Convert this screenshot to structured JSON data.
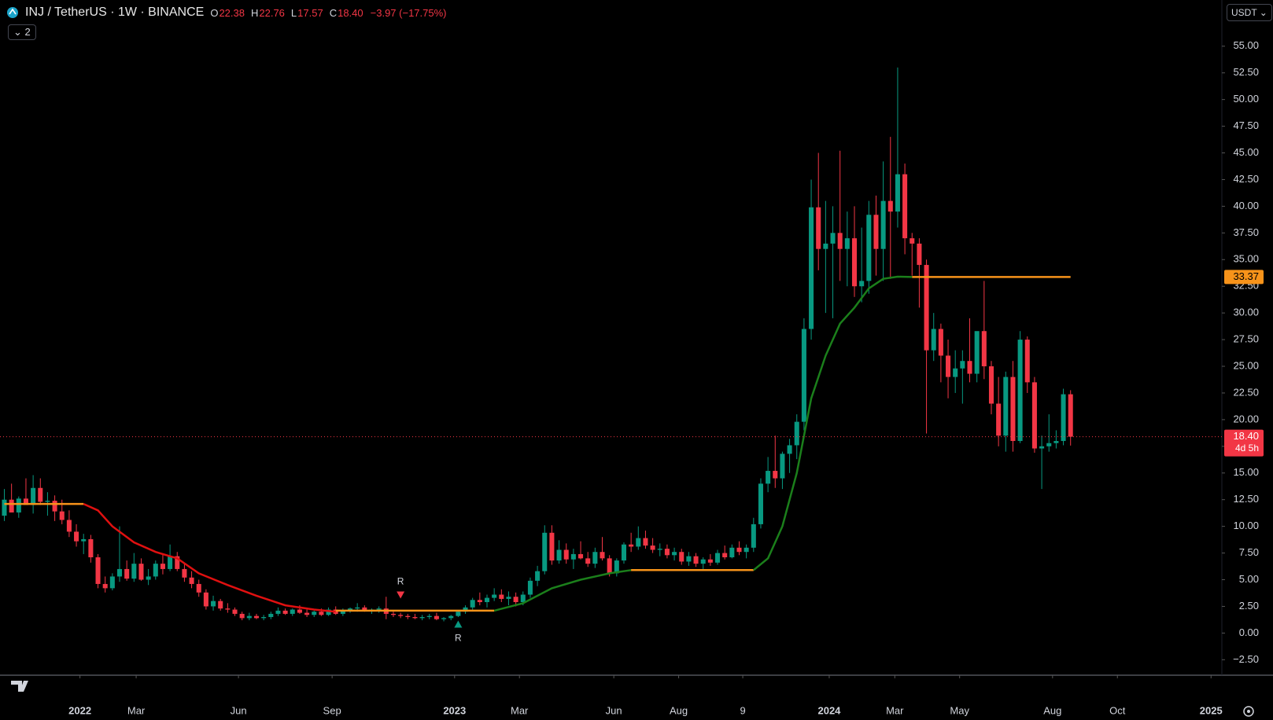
{
  "header": {
    "symbol": "INJ / TetherUS · 1W · BINANCE",
    "ohlc": [
      {
        "label": "O",
        "value": "22.38"
      },
      {
        "label": "H",
        "value": "22.76"
      },
      {
        "label": "L",
        "value": "17.57"
      },
      {
        "label": "C",
        "value": "18.40"
      }
    ],
    "change": "−3.97 (−17.75%)",
    "indicators_count": "2",
    "currency": "USDT"
  },
  "chart_data": {
    "type": "candlestick",
    "up_color": "#089981",
    "down_color": "#f23645",
    "grid": false,
    "values": [
      [
        11,
        13.5,
        10.5,
        12.5
      ],
      [
        12.5,
        14,
        11.8,
        11.3
      ],
      [
        11.3,
        12.8,
        10.8,
        12.6
      ],
      [
        12.6,
        14.5,
        12,
        12
      ],
      [
        12,
        14.8,
        11.2,
        13.6
      ],
      [
        13.6,
        14.5,
        12,
        12.3
      ],
      [
        12.3,
        13.2,
        11,
        12.4
      ],
      [
        12.4,
        12.9,
        10.5,
        11.4
      ],
      [
        11.4,
        12.5,
        10.2,
        10.6
      ],
      [
        10.6,
        11.5,
        9,
        9.5
      ],
      [
        9.5,
        10.2,
        8.1,
        8.6
      ],
      [
        8.6,
        9.3,
        7.4,
        8.8
      ],
      [
        8.8,
        9.2,
        6.6,
        7.1
      ],
      [
        7.1,
        7.4,
        4.2,
        4.6
      ],
      [
        4.6,
        5.3,
        3.8,
        4.2
      ],
      [
        4.2,
        5.6,
        4,
        5.3
      ],
      [
        5.3,
        10,
        4.8,
        6
      ],
      [
        6,
        6.8,
        4.9,
        5.1
      ],
      [
        5.1,
        7.5,
        4.8,
        6.5
      ],
      [
        6.5,
        7,
        4.9,
        5
      ],
      [
        5,
        6,
        4.5,
        5.3
      ],
      [
        5.3,
        6.8,
        5,
        6.5
      ],
      [
        6.5,
        7.4,
        5.5,
        6
      ],
      [
        6,
        8.3,
        5.8,
        7.2
      ],
      [
        7.2,
        7.6,
        5.8,
        6
      ],
      [
        6,
        6.5,
        4.8,
        5.2
      ],
      [
        5.2,
        5.8,
        4.2,
        4.6
      ],
      [
        4.6,
        5,
        3.4,
        3.8
      ],
      [
        3.8,
        4.1,
        2.2,
        2.5
      ],
      [
        2.5,
        3.5,
        2.1,
        3
      ],
      [
        3,
        3.2,
        2.1,
        2.3
      ],
      [
        2.3,
        2.8,
        1.9,
        2.2
      ],
      [
        2.2,
        2.4,
        1.6,
        1.8
      ],
      [
        1.8,
        2,
        1.2,
        1.4
      ],
      [
        1.4,
        1.9,
        1.2,
        1.6
      ],
      [
        1.6,
        1.8,
        1.3,
        1.4
      ],
      [
        1.4,
        1.7,
        1.2,
        1.5
      ],
      [
        1.5,
        2,
        1.3,
        1.8
      ],
      [
        1.8,
        2.4,
        1.6,
        2.1
      ],
      [
        2.1,
        2.3,
        1.7,
        1.8
      ],
      [
        1.8,
        2.3,
        1.6,
        2.2
      ],
      [
        2.2,
        2.6,
        1.8,
        1.9
      ],
      [
        1.9,
        2.2,
        1.5,
        1.7
      ],
      [
        1.7,
        2.1,
        1.5,
        2
      ],
      [
        2,
        2.3,
        1.6,
        1.7
      ],
      [
        1.7,
        2.4,
        1.6,
        2.2
      ],
      [
        2.2,
        2.5,
        1.7,
        1.8
      ],
      [
        1.8,
        2.3,
        1.6,
        2.1
      ],
      [
        2.1,
        2.4,
        1.9,
        2.3
      ],
      [
        2.3,
        2.8,
        2,
        2.4
      ],
      [
        2.4,
        2.6,
        2,
        2.1
      ],
      [
        2.1,
        2.3,
        1.8,
        2.2
      ],
      [
        2.2,
        2.5,
        1.9,
        2.3
      ],
      [
        2.3,
        3.4,
        1.3,
        1.8
      ],
      [
        1.8,
        2,
        1.5,
        1.7
      ],
      [
        1.7,
        1.9,
        1.4,
        1.6
      ],
      [
        1.6,
        1.8,
        1.3,
        1.5
      ],
      [
        1.5,
        1.8,
        1.3,
        1.4
      ],
      [
        1.4,
        1.7,
        1.2,
        1.5
      ],
      [
        1.5,
        1.8,
        1.3,
        1.6
      ],
      [
        1.6,
        1.9,
        1.2,
        1.3
      ],
      [
        1.3,
        1.5,
        1.1,
        1.4
      ],
      [
        1.4,
        1.7,
        1.2,
        1.6
      ],
      [
        1.6,
        2.1,
        1.5,
        2
      ],
      [
        2,
        2.6,
        1.8,
        2.4
      ],
      [
        2.4,
        3.3,
        2.2,
        3.1
      ],
      [
        3.1,
        3.8,
        2.6,
        2.9
      ],
      [
        2.9,
        3.6,
        2.4,
        3.3
      ],
      [
        3.3,
        4.2,
        3,
        3.6
      ],
      [
        3.6,
        4.1,
        2.9,
        3.2
      ],
      [
        3.2,
        3.9,
        2.6,
        3.4
      ],
      [
        3.4,
        3.8,
        2.5,
        2.9
      ],
      [
        2.9,
        3.9,
        2.6,
        3.6
      ],
      [
        3.6,
        5.2,
        3.3,
        4.9
      ],
      [
        4.9,
        6.3,
        4.4,
        5.8
      ],
      [
        5.8,
        10.1,
        5.5,
        9.4
      ],
      [
        9.4,
        10.1,
        6.4,
        6.8
      ],
      [
        6.8,
        8.7,
        6.5,
        7.8
      ],
      [
        7.8,
        8.4,
        6.5,
        6.9
      ],
      [
        6.9,
        7.9,
        6,
        7.4
      ],
      [
        7.4,
        8.6,
        6.9,
        7
      ],
      [
        7,
        7.6,
        6.2,
        6.5
      ],
      [
        6.5,
        8,
        6.1,
        7.6
      ],
      [
        7.6,
        9,
        6.8,
        7
      ],
      [
        7,
        7.3,
        5.3,
        5.6
      ],
      [
        5.6,
        7,
        5.3,
        6.8
      ],
      [
        6.8,
        8.5,
        6.5,
        8.3
      ],
      [
        8.3,
        9.4,
        7.6,
        8.1
      ],
      [
        8.1,
        10,
        7.8,
        8.9
      ],
      [
        8.9,
        9.6,
        7.9,
        8.2
      ],
      [
        8.2,
        8.9,
        7.5,
        7.8
      ],
      [
        7.8,
        8.4,
        7.2,
        7.9
      ],
      [
        7.9,
        8.3,
        7,
        7.3
      ],
      [
        7.3,
        8,
        6.8,
        7.6
      ],
      [
        7.6,
        7.9,
        6.4,
        6.7
      ],
      [
        6.7,
        7.6,
        6.3,
        7.2
      ],
      [
        7.2,
        7.5,
        6.2,
        6.5
      ],
      [
        6.5,
        7.1,
        6,
        6.9
      ],
      [
        6.9,
        7.4,
        6.3,
        6.6
      ],
      [
        6.6,
        7.8,
        6.4,
        7.5
      ],
      [
        7.5,
        8.2,
        6.9,
        7.1
      ],
      [
        7.1,
        8.3,
        7,
        8
      ],
      [
        8,
        8.6,
        7.3,
        7.6
      ],
      [
        7.6,
        8.3,
        7,
        8
      ],
      [
        8,
        10.8,
        7.6,
        10.2
      ],
      [
        10.2,
        14.5,
        9.8,
        14
      ],
      [
        14,
        16.5,
        13.2,
        15.2
      ],
      [
        15.2,
        18.5,
        13.6,
        14.5
      ],
      [
        14.5,
        17,
        13.5,
        16.8
      ],
      [
        16.8,
        18.2,
        15,
        17.6
      ],
      [
        17.6,
        20.5,
        16.3,
        19.8
      ],
      [
        19.8,
        29.5,
        19,
        28.5
      ],
      [
        28.5,
        42.5,
        27.5,
        39.9
      ],
      [
        39.9,
        45,
        34,
        36
      ],
      [
        36,
        40.5,
        30,
        36.5
      ],
      [
        36.5,
        40,
        29.5,
        37.5
      ],
      [
        37.5,
        45.2,
        33,
        36
      ],
      [
        36,
        39.5,
        32.5,
        37
      ],
      [
        37,
        40,
        31.5,
        32.5
      ],
      [
        32.5,
        38,
        31,
        33
      ],
      [
        33,
        40.5,
        31.8,
        39.2
      ],
      [
        39.2,
        41,
        33.5,
        36
      ],
      [
        36,
        44.2,
        33,
        40.5
      ],
      [
        40.5,
        46.5,
        33.2,
        39.5
      ],
      [
        39.5,
        53,
        38,
        43
      ],
      [
        43,
        44,
        35.5,
        37
      ],
      [
        37,
        37.5,
        33.5,
        36.5
      ],
      [
        36.5,
        37,
        30.5,
        34.5
      ],
      [
        34.5,
        35,
        18.7,
        26.5
      ],
      [
        26.5,
        30,
        25.5,
        28.5
      ],
      [
        28.5,
        29,
        23.5,
        26
      ],
      [
        26,
        27.5,
        22,
        24
      ],
      [
        24,
        26.5,
        22.5,
        24.8
      ],
      [
        24.8,
        26.5,
        21.5,
        25.5
      ],
      [
        25.5,
        29.5,
        23.5,
        24.3
      ],
      [
        24.3,
        27.5,
        23.5,
        28.3
      ],
      [
        28.3,
        33,
        23.8,
        25
      ],
      [
        25,
        25.5,
        20.5,
        21.5
      ],
      [
        21.5,
        24,
        17.5,
        18.5
      ],
      [
        18.5,
        24.5,
        17,
        24
      ],
      [
        24,
        25.5,
        17,
        18
      ],
      [
        18,
        28.3,
        17.8,
        27.5
      ],
      [
        27.5,
        27.8,
        22.5,
        23.5
      ],
      [
        23.5,
        24,
        16.9,
        17.3
      ],
      [
        17.3,
        18.5,
        13.5,
        17.5
      ],
      [
        17.5,
        20.5,
        17,
        17.8
      ],
      [
        17.8,
        19,
        17.3,
        18
      ],
      [
        18,
        22.9,
        17.6,
        22.38
      ],
      [
        22.38,
        22.76,
        17.57,
        18.4
      ]
    ],
    "lines": [
      {
        "color": "#f7931a",
        "x": [
          0,
          11
        ],
        "values": [
          12.1,
          12.1
        ]
      },
      {
        "color": "#e01010",
        "x": [
          11,
          13,
          15,
          18,
          21,
          24,
          27,
          31,
          35,
          39,
          43,
          46
        ],
        "values": [
          12.1,
          11.5,
          10,
          8.5,
          7.6,
          7,
          5.6,
          4.5,
          3.5,
          2.6,
          2.2,
          2
        ]
      },
      {
        "color": "#f7931a",
        "x": [
          46,
          68
        ],
        "values": [
          2.1,
          2.1
        ]
      },
      {
        "color": "#1b7f1b",
        "x": [
          68,
          72,
          76,
          80,
          84,
          87
        ],
        "values": [
          2.1,
          2.8,
          4.2,
          5,
          5.6,
          5.9
        ]
      },
      {
        "color": "#f7931a",
        "x": [
          87,
          104
        ],
        "values": [
          5.9,
          5.9
        ]
      },
      {
        "color": "#1b7f1b",
        "x": [
          104,
          106,
          108,
          110,
          112,
          114,
          116,
          118,
          120,
          122,
          124,
          126
        ],
        "values": [
          5.9,
          7,
          10,
          15,
          22,
          26,
          29,
          30.5,
          32.3,
          33.2,
          33.4,
          33.37
        ]
      },
      {
        "color": "#f7931a",
        "x": [
          126,
          148
        ],
        "values": [
          33.37,
          33.37
        ]
      }
    ],
    "annotations": [
      {
        "text": "R",
        "x": 55,
        "value": 3.6,
        "position": "above",
        "color": "#f23645"
      },
      {
        "text": "R",
        "x": 63,
        "value": 0.8,
        "position": "below",
        "color": "#089981"
      }
    ],
    "last_price": {
      "value": 18.4,
      "label": "18.40"
    },
    "countdown": "4d 5h",
    "level": {
      "value": 33.37,
      "label": "33.37",
      "color": "#f7931a"
    },
    "xlim": [
      -0.6,
      169
    ],
    "xticks": [
      {
        "value": 10.5,
        "label": "2022"
      },
      {
        "value": 18.3,
        "label": "Mar"
      },
      {
        "value": 32.5,
        "label": "Jun"
      },
      {
        "value": 45.5,
        "label": "Sep"
      },
      {
        "value": 62.5,
        "label": "2023"
      },
      {
        "value": 71.5,
        "label": "Mar"
      },
      {
        "value": 84.6,
        "label": "Jun"
      },
      {
        "value": 93.6,
        "label": "Aug"
      },
      {
        "value": 102.5,
        "label": "9"
      },
      {
        "value": 114.5,
        "label": "2024"
      },
      {
        "value": 123.6,
        "label": "Mar"
      },
      {
        "value": 132.6,
        "label": "May"
      },
      {
        "value": 145.5,
        "label": "Aug"
      },
      {
        "value": 154.5,
        "label": "Oct"
      },
      {
        "value": 167.5,
        "label": "2025"
      }
    ],
    "ylim": [
      -3.95,
      59.33
    ],
    "yticks": [
      {
        "value": -2.5,
        "label": "−2.50"
      },
      {
        "value": 0,
        "label": "0.00"
      },
      {
        "value": 2.5,
        "label": "2.50"
      },
      {
        "value": 5,
        "label": "5.00"
      },
      {
        "value": 7.5,
        "label": "7.50"
      },
      {
        "value": 10,
        "label": "10.00"
      },
      {
        "value": 12.5,
        "label": "12.50"
      },
      {
        "value": 15,
        "label": "15.00"
      },
      {
        "value": 17.5,
        "label": "17.50"
      },
      {
        "value": 20,
        "label": "20.00"
      },
      {
        "value": 22.5,
        "label": "22.50"
      },
      {
        "value": 25,
        "label": "25.00"
      },
      {
        "value": 27.5,
        "label": "27.50"
      },
      {
        "value": 30,
        "label": "30.00"
      },
      {
        "value": 32.5,
        "label": "32.50"
      },
      {
        "value": 35,
        "label": "35.00"
      },
      {
        "value": 37.5,
        "label": "37.50"
      },
      {
        "value": 40,
        "label": "40.00"
      },
      {
        "value": 42.5,
        "label": "42.50"
      },
      {
        "value": 45,
        "label": "45.00"
      },
      {
        "value": 47.5,
        "label": "47.50"
      },
      {
        "value": 50,
        "label": "50.00"
      },
      {
        "value": 52.5,
        "label": "52.50"
      },
      {
        "value": 55,
        "label": "55.00"
      }
    ]
  }
}
